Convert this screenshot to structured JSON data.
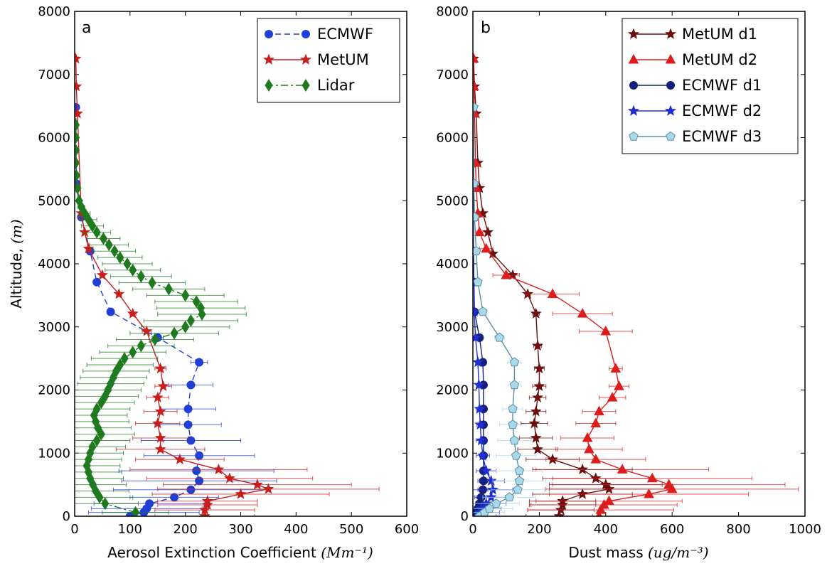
{
  "chart_data": [
    {
      "type": "line",
      "panel_label": "a",
      "xlabel": "Aerosol Extinction Coefficient",
      "xlabel_unit": "(Mm⁻¹)",
      "ylabel": "Altitude,",
      "ylabel_unit": "(m)",
      "xlim": [
        0,
        600
      ],
      "ylim": [
        0,
        8000
      ],
      "xticks": [
        "0",
        "100",
        "200",
        "300",
        "400",
        "500",
        "600"
      ],
      "yticks": [
        "0",
        "1000",
        "2000",
        "3000",
        "4000",
        "5000",
        "6000",
        "7000",
        "8000"
      ],
      "legend_position": "top-right",
      "grid": false,
      "series": [
        {
          "name": "ECMWF",
          "color": "#1f3fd6",
          "marker": "circle",
          "line": "dashed",
          "y": [
            0,
            60,
            120,
            200,
            300,
            420,
            560,
            720,
            960,
            1200,
            1450,
            1700,
            2080,
            2440,
            2830,
            3240,
            3710,
            4200,
            4740,
            5270,
            6480
          ],
          "x": [
            100,
            125,
            130,
            135,
            180,
            210,
            225,
            220,
            225,
            210,
            205,
            205,
            210,
            225,
            150,
            65,
            40,
            28,
            12,
            3,
            2
          ],
          "xerr": [
            100,
            100,
            100,
            100,
            80,
            140,
            140,
            140,
            100,
            90,
            60,
            50,
            40,
            15,
            10,
            5,
            3,
            2,
            2,
            1,
            0
          ]
        },
        {
          "name": "MetUM",
          "color": "#c81e1e",
          "marker": "star",
          "line": "solid",
          "y": [
            0,
            100,
            180,
            240,
            350,
            430,
            500,
            600,
            740,
            900,
            1060,
            1240,
            1470,
            1660,
            1880,
            2060,
            2340,
            2930,
            3210,
            3520,
            3820,
            4240,
            4500,
            4800,
            6380,
            6810,
            7250
          ],
          "x": [
            235,
            235,
            240,
            240,
            300,
            350,
            330,
            280,
            260,
            190,
            155,
            155,
            150,
            155,
            150,
            160,
            155,
            130,
            105,
            80,
            50,
            25,
            18,
            12,
            5,
            3,
            2
          ],
          "xerr": [
            90,
            90,
            90,
            90,
            160,
            200,
            170,
            150,
            160,
            80,
            80,
            50,
            40,
            30,
            20,
            15,
            10,
            8,
            6,
            4,
            3,
            3,
            2,
            2,
            1,
            0,
            0
          ]
        },
        {
          "name": "Lidar",
          "color": "#1f7a1f",
          "marker": "diamond",
          "line": "dashdot",
          "y": [
            60,
            200,
            300,
            400,
            500,
            600,
            700,
            800,
            900,
            1000,
            1100,
            1200,
            1300,
            1400,
            1500,
            1600,
            1700,
            1800,
            1900,
            2000,
            2100,
            2200,
            2300,
            2400,
            2500,
            2600,
            2700,
            2800,
            2900,
            3000,
            3100,
            3200,
            3300,
            3400,
            3500,
            3600,
            3700,
            3800,
            3900,
            4000,
            4100,
            4200,
            4300,
            4400,
            4500,
            4600,
            4700,
            4800,
            4900,
            5000,
            5200,
            5400,
            5600,
            5800,
            6000,
            6200
          ],
          "x": [
            110,
            55,
            45,
            38,
            33,
            28,
            25,
            22,
            25,
            28,
            32,
            40,
            48,
            42,
            38,
            35,
            40,
            48,
            55,
            60,
            65,
            70,
            75,
            82,
            90,
            105,
            120,
            145,
            180,
            200,
            210,
            230,
            228,
            220,
            200,
            170,
            140,
            120,
            105,
            95,
            82,
            72,
            62,
            52,
            40,
            32,
            25,
            18,
            12,
            8,
            5,
            3,
            2,
            2,
            2,
            2
          ],
          "xerr": [
            60,
            60,
            60,
            60,
            60,
            60,
            60,
            60,
            60,
            60,
            60,
            60,
            60,
            60,
            60,
            60,
            60,
            60,
            60,
            60,
            60,
            60,
            60,
            60,
            60,
            60,
            60,
            70,
            80,
            80,
            85,
            80,
            80,
            75,
            70,
            65,
            60,
            55,
            50,
            45,
            40,
            38,
            35,
            30,
            25,
            20,
            15,
            10,
            6,
            4,
            2,
            2,
            2,
            2,
            2,
            2
          ]
        }
      ]
    },
    {
      "type": "line",
      "panel_label": "b",
      "xlabel": "Dust mass",
      "xlabel_unit": "(ug/m⁻³)",
      "ylabel": "",
      "xlim": [
        0,
        1000
      ],
      "ylim": [
        0,
        8000
      ],
      "xticks": [
        "0",
        "200",
        "400",
        "600",
        "800",
        "1000"
      ],
      "yticks": [
        "0",
        "1000",
        "2000",
        "3000",
        "4000",
        "5000",
        "6000",
        "7000",
        "8000"
      ],
      "legend_position": "top-right",
      "grid": false,
      "series": [
        {
          "name": "MetUM d1",
          "color": "#6b0f0f",
          "marker": "star",
          "line": "solid",
          "y": [
            0,
            100,
            180,
            240,
            350,
            430,
            500,
            600,
            740,
            900,
            1060,
            1240,
            1470,
            1660,
            1880,
            2060,
            2340,
            2700,
            3210,
            3520,
            3820,
            4160,
            4500,
            4800,
            5200,
            5600,
            6380,
            6810,
            7250
          ],
          "x": [
            260,
            265,
            270,
            270,
            330,
            410,
            400,
            370,
            330,
            240,
            195,
            190,
            185,
            190,
            195,
            200,
            200,
            195,
            190,
            165,
            120,
            60,
            45,
            30,
            20,
            15,
            10,
            5,
            2
          ],
          "xerr": [
            100,
            100,
            100,
            100,
            150,
            180,
            170,
            160,
            150,
            80,
            60,
            50,
            40,
            30,
            25,
            20,
            15,
            12,
            10,
            8,
            6,
            5,
            4,
            3,
            2,
            2,
            1,
            0,
            0
          ]
        },
        {
          "name": "MetUM d2",
          "color": "#dd1c1c",
          "marker": "triangle",
          "line": "solid",
          "y": [
            0,
            100,
            180,
            240,
            350,
            430,
            500,
            600,
            740,
            900,
            1060,
            1240,
            1470,
            1660,
            1880,
            2060,
            2340,
            2930,
            3210,
            3520,
            3820,
            4240,
            4500,
            4800,
            5200,
            5600,
            6380,
            6810,
            7250
          ],
          "x": [
            380,
            385,
            395,
            410,
            530,
            600,
            590,
            540,
            450,
            370,
            350,
            345,
            370,
            380,
            420,
            440,
            430,
            400,
            330,
            240,
            100,
            40,
            20,
            15,
            10,
            8,
            5,
            3,
            2
          ],
          "xerr": [
            220,
            220,
            220,
            220,
            300,
            380,
            350,
            300,
            260,
            150,
            100,
            80,
            60,
            50,
            40,
            30,
            20,
            80,
            90,
            80,
            40,
            20,
            10,
            5,
            4,
            3,
            2,
            1,
            0
          ]
        },
        {
          "name": "ECMWF d1",
          "color": "#14207a",
          "marker": "circle",
          "line": "solid",
          "y": [
            0,
            60,
            120,
            200,
            300,
            420,
            560,
            720,
            960,
            1200,
            1450,
            1700,
            2080,
            2440,
            2830,
            3240,
            3710,
            4200,
            4740,
            5270,
            6480
          ],
          "x": [
            5,
            10,
            15,
            20,
            25,
            30,
            32,
            32,
            32,
            32,
            32,
            32,
            32,
            30,
            20,
            5,
            3,
            2,
            1,
            1,
            1
          ],
          "xerr": [
            10,
            10,
            12,
            12,
            15,
            15,
            12,
            10,
            8,
            6,
            5,
            4,
            3,
            3,
            2,
            1,
            1,
            0,
            0,
            0,
            0
          ]
        },
        {
          "name": "ECMWF d2",
          "color": "#1f2fd0",
          "marker": "star",
          "line": "solid",
          "y": [
            0,
            60,
            120,
            200,
            300,
            420,
            560,
            720,
            960,
            1200,
            1450,
            1700,
            2080,
            2440,
            2830,
            3240,
            3710,
            4200,
            4740,
            5270,
            6480
          ],
          "x": [
            10,
            20,
            25,
            40,
            55,
            60,
            55,
            40,
            30,
            25,
            22,
            20,
            18,
            15,
            8,
            4,
            3,
            2,
            1,
            1,
            1
          ],
          "xerr": [
            60,
            60,
            60,
            60,
            50,
            60,
            40,
            30,
            20,
            15,
            10,
            8,
            5,
            4,
            3,
            2,
            1,
            0,
            0,
            0,
            0
          ]
        },
        {
          "name": "ECMWF d3",
          "color": "#a9d8e8",
          "edge": "#5a8ea6",
          "marker": "pentagon",
          "line": "solid",
          "y": [
            0,
            60,
            120,
            200,
            300,
            420,
            560,
            720,
            960,
            1200,
            1450,
            1700,
            2080,
            2440,
            2830,
            3240,
            3710,
            4200,
            4740,
            5270,
            6480
          ],
          "x": [
            20,
            35,
            50,
            70,
            110,
            135,
            140,
            140,
            130,
            125,
            120,
            120,
            125,
            125,
            80,
            30,
            15,
            10,
            5,
            3,
            2
          ],
          "xerr": [
            60,
            60,
            70,
            70,
            80,
            80,
            80,
            70,
            60,
            50,
            40,
            30,
            20,
            20,
            15,
            5,
            3,
            2,
            1,
            0,
            0
          ]
        }
      ]
    }
  ]
}
